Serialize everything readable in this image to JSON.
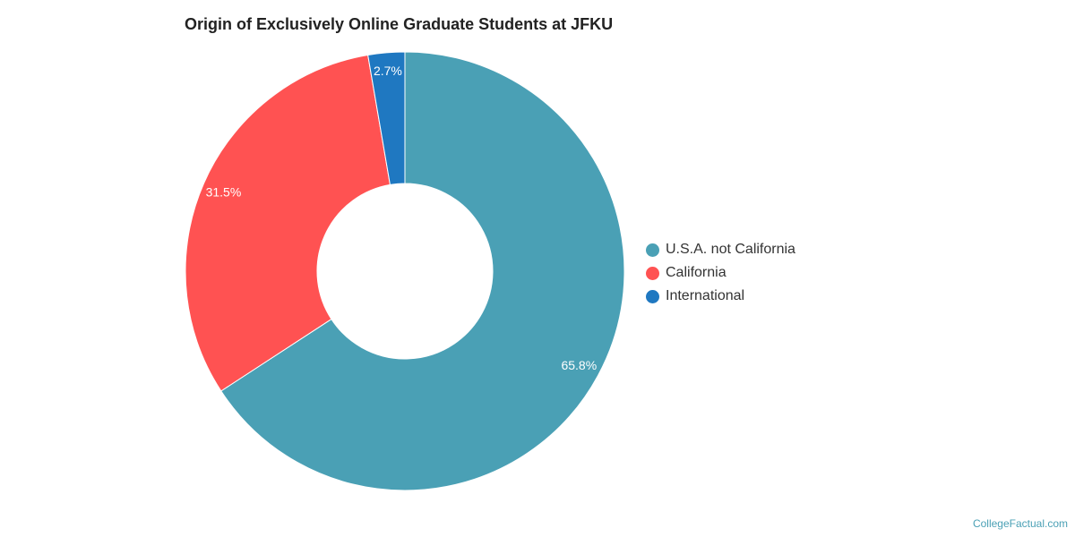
{
  "chart_data": {
    "type": "pie",
    "title": "Origin of Exclusively Online Graduate Students at JFKU",
    "donut": true,
    "slices": [
      {
        "name": "U.S.A. not California",
        "value": 65.8,
        "label": "65.8%",
        "color": "#4aa0b5"
      },
      {
        "name": "California",
        "value": 31.5,
        "label": "31.5%",
        "color": "#ff5252"
      },
      {
        "name": "International",
        "value": 2.7,
        "label": "2.7%",
        "color": "#1f78c1"
      }
    ],
    "legend_position": "right"
  },
  "source": {
    "text": "CollegeFactual.com"
  }
}
